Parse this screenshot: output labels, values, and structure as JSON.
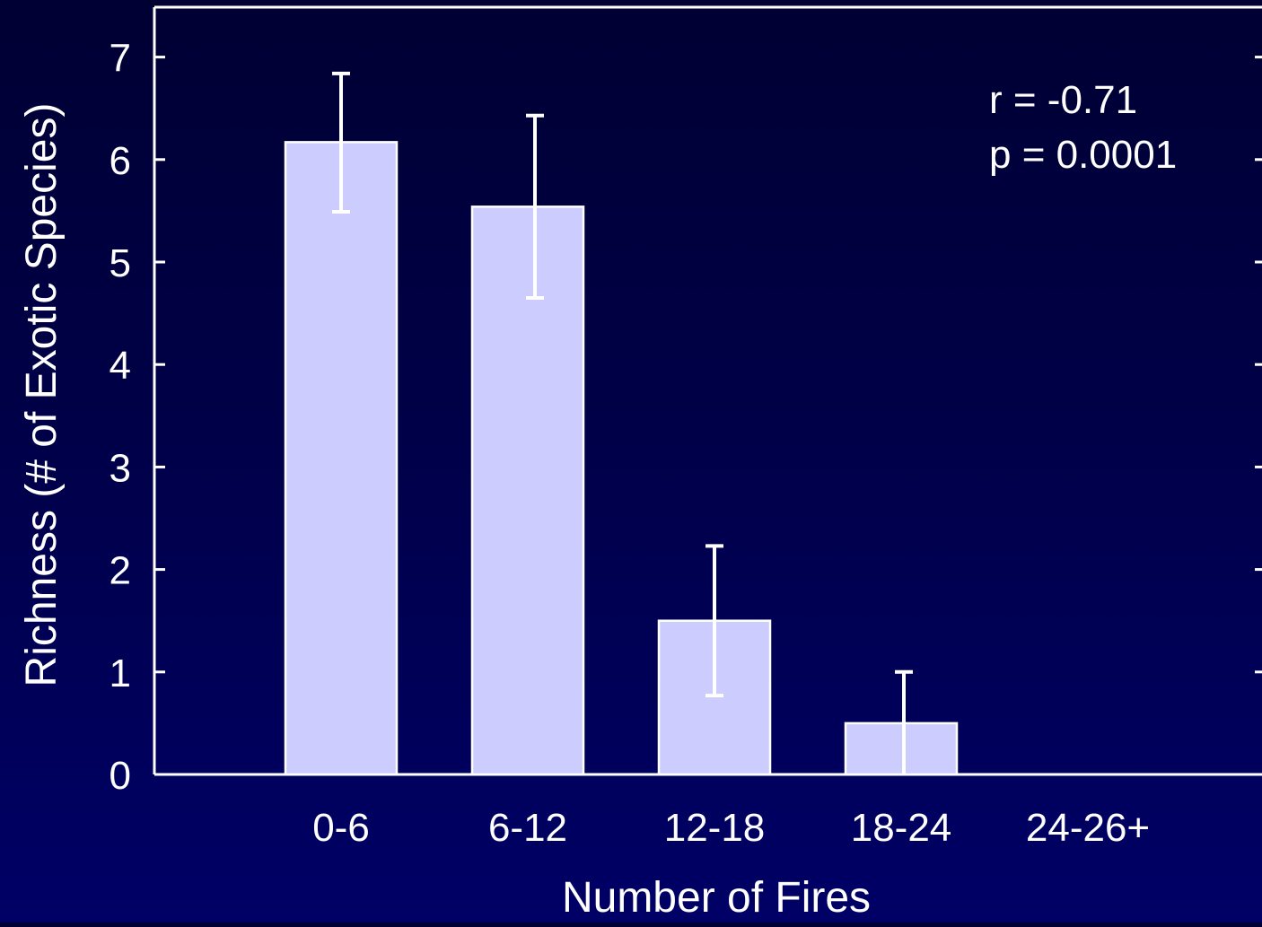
{
  "chart_data": {
    "type": "bar",
    "title": "",
    "xlabel": "Number of Fires",
    "ylabel": "Richness (# of Exotic Species)",
    "categories": [
      "0-6",
      "6-12",
      "12-18",
      "18-24",
      "24-26+"
    ],
    "values": [
      6.17,
      5.54,
      1.5,
      0.5,
      0
    ],
    "error_upper": [
      6.84,
      6.43,
      2.23,
      1.0,
      null
    ],
    "error_lower": [
      5.49,
      4.65,
      0.77,
      0.0,
      null
    ],
    "y_ticks": [
      "0",
      "1",
      "2",
      "3",
      "4",
      "5",
      "6",
      "7"
    ],
    "ylim": [
      0,
      7.5
    ],
    "grid": false,
    "annotations": [
      "r = -0.71",
      "p = 0.0001"
    ],
    "colors": {
      "bar_fill": "#ccccff",
      "bar_stroke": "#ffffff",
      "axis": "#ffffff",
      "text": "#ffffff"
    }
  }
}
